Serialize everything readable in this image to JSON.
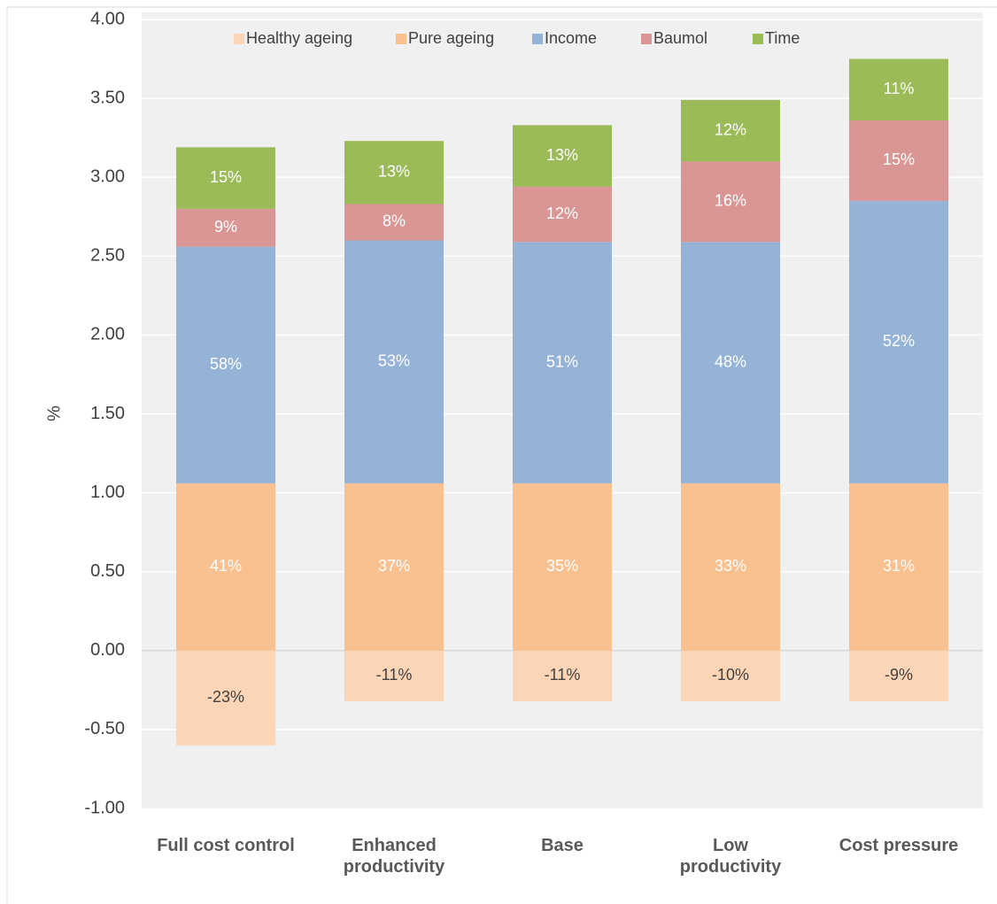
{
  "chart_data": {
    "type": "stacked-bar",
    "y_label": "%",
    "categories": [
      "Full cost control",
      "Enhanced\nproductivity",
      "Base",
      "Low\nproductivity",
      "Cost pressure"
    ],
    "series": [
      {
        "name": "Healthy ageing",
        "color": "#fbd5b5",
        "label_color": "#404040",
        "values": [
          -0.6,
          -0.32,
          -0.32,
          -0.32,
          -0.32
        ],
        "segment_labels": [
          "-23%",
          "-11%",
          "-11%",
          "-10%",
          "-9%"
        ]
      },
      {
        "name": "Pure ageing",
        "color": "#f9c090",
        "label_color": "#ffffff",
        "values": [
          1.06,
          1.06,
          1.06,
          1.06,
          1.06
        ],
        "segment_labels": [
          "41%",
          "37%",
          "35%",
          "33%",
          "31%"
        ]
      },
      {
        "name": "Income",
        "color": "#95b3d7",
        "label_color": "#ffffff",
        "values": [
          1.5,
          1.54,
          1.53,
          1.53,
          1.79
        ],
        "segment_labels": [
          "58%",
          "53%",
          "51%",
          "48%",
          "52%"
        ]
      },
      {
        "name": "Baumol",
        "color": "#d99694",
        "label_color": "#ffffff",
        "values": [
          0.24,
          0.23,
          0.35,
          0.51,
          0.51
        ],
        "segment_labels": [
          "9%",
          "8%",
          "12%",
          "16%",
          "15%"
        ]
      },
      {
        "name": "Time",
        "color": "#9bbb59",
        "label_color": "#ffffff",
        "values": [
          0.39,
          0.4,
          0.39,
          0.39,
          0.39
        ],
        "segment_labels": [
          "15%",
          "13%",
          "13%",
          "12%",
          "11%"
        ]
      }
    ],
    "ylim": [
      -1,
      4
    ],
    "yticks": [
      {
        "value": -1,
        "label": "-1.00"
      },
      {
        "value": -0.5,
        "label": "-0.50"
      },
      {
        "value": 0,
        "label": "0.00"
      },
      {
        "value": 0.5,
        "label": "0.50"
      },
      {
        "value": 1,
        "label": "1.00"
      },
      {
        "value": 1.5,
        "label": "1.50"
      },
      {
        "value": 2,
        "label": "2.00"
      },
      {
        "value": 2.5,
        "label": "2.50"
      },
      {
        "value": 3,
        "label": "3.00"
      },
      {
        "value": 3.5,
        "label": "3.50"
      },
      {
        "value": 4,
        "label": "4.00"
      }
    ],
    "grid": true
  }
}
